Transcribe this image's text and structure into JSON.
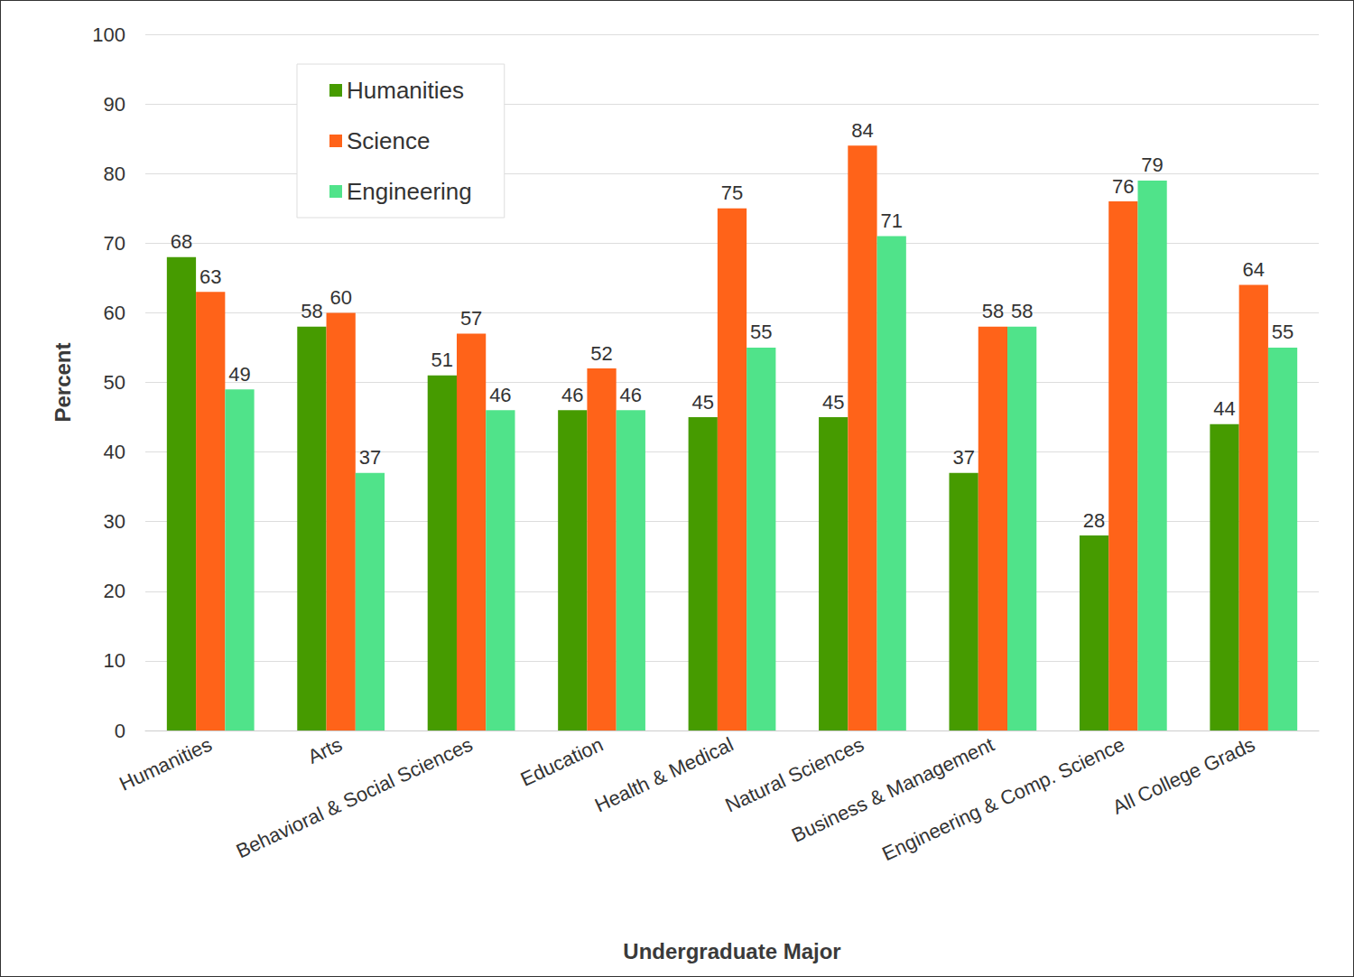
{
  "chart_data": {
    "type": "bar",
    "x_label": "Undergraduate Major",
    "y_label": "Percent",
    "categories": [
      "Humanities",
      "Arts",
      "Behavioral & Social Sciences",
      "Education",
      "Health & Medical",
      "Natural Sciences",
      "Business & Management",
      "Engineering & Comp. Science",
      "All College Grads"
    ],
    "series": [
      {
        "name": "Humanities",
        "color": "#469b00",
        "values": [
          68,
          58,
          51,
          46,
          45,
          45,
          37,
          28,
          44
        ]
      },
      {
        "name": "Science",
        "color": "#ff6319",
        "values": [
          63,
          60,
          57,
          52,
          75,
          84,
          58,
          76,
          64
        ]
      },
      {
        "name": "Engineering",
        "color": "#50e38a",
        "values": [
          49,
          37,
          46,
          46,
          55,
          71,
          58,
          79,
          55
        ]
      }
    ],
    "ylim": [
      0,
      100
    ],
    "yticks": [
      0,
      10,
      20,
      30,
      40,
      50,
      60,
      70,
      80,
      90,
      100
    ],
    "grid": true,
    "legend": "top-left",
    "data_labels": true
  }
}
